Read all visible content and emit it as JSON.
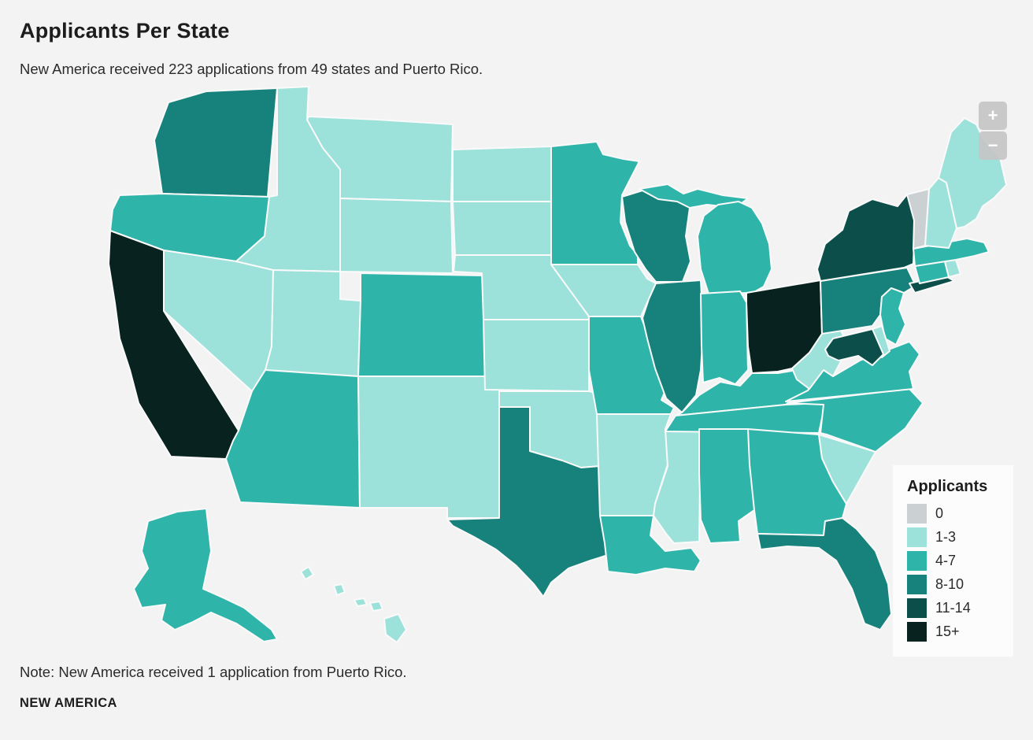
{
  "header": {
    "title": "Applicants Per State",
    "subtitle": "New America received 223 applications from 49 states and Puerto Rico."
  },
  "map": {
    "zoom_in_label": "+",
    "zoom_out_label": "−",
    "legend": {
      "title": "Applicants",
      "items": [
        {
          "label": "0",
          "color": "#cbd1d2"
        },
        {
          "label": "1-3",
          "color": "#9ce1da"
        },
        {
          "label": "4-7",
          "color": "#2fb4aa"
        },
        {
          "label": "8-10",
          "color": "#17817b"
        },
        {
          "label": "11-14",
          "color": "#0c4f4a"
        },
        {
          "label": "15+",
          "color": "#08231f"
        }
      ]
    },
    "states": [
      {
        "id": "AK",
        "name": "Alaska",
        "applicants": "4-7"
      },
      {
        "id": "HI",
        "name": "Hawaii",
        "applicants": "1-3"
      },
      {
        "id": "WA",
        "name": "Washington",
        "applicants": "8-10"
      },
      {
        "id": "OR",
        "name": "Oregon",
        "applicants": "4-7"
      },
      {
        "id": "CA",
        "name": "California",
        "applicants": "15+"
      },
      {
        "id": "NV",
        "name": "Nevada",
        "applicants": "1-3"
      },
      {
        "id": "ID",
        "name": "Idaho",
        "applicants": "1-3"
      },
      {
        "id": "MT",
        "name": "Montana",
        "applicants": "1-3"
      },
      {
        "id": "WY",
        "name": "Wyoming",
        "applicants": "1-3"
      },
      {
        "id": "UT",
        "name": "Utah",
        "applicants": "1-3"
      },
      {
        "id": "CO",
        "name": "Colorado",
        "applicants": "4-7"
      },
      {
        "id": "AZ",
        "name": "Arizona",
        "applicants": "4-7"
      },
      {
        "id": "NM",
        "name": "New Mexico",
        "applicants": "1-3"
      },
      {
        "id": "ND",
        "name": "North Dakota",
        "applicants": "1-3"
      },
      {
        "id": "SD",
        "name": "South Dakota",
        "applicants": "1-3"
      },
      {
        "id": "NE",
        "name": "Nebraska",
        "applicants": "1-3"
      },
      {
        "id": "KS",
        "name": "Kansas",
        "applicants": "1-3"
      },
      {
        "id": "OK",
        "name": "Oklahoma",
        "applicants": "1-3"
      },
      {
        "id": "TX",
        "name": "Texas",
        "applicants": "8-10"
      },
      {
        "id": "MN",
        "name": "Minnesota",
        "applicants": "4-7"
      },
      {
        "id": "IA",
        "name": "Iowa",
        "applicants": "1-3"
      },
      {
        "id": "MO",
        "name": "Missouri",
        "applicants": "4-7"
      },
      {
        "id": "AR",
        "name": "Arkansas",
        "applicants": "1-3"
      },
      {
        "id": "LA",
        "name": "Louisiana",
        "applicants": "4-7"
      },
      {
        "id": "WI",
        "name": "Wisconsin",
        "applicants": "8-10"
      },
      {
        "id": "IL",
        "name": "Illinois",
        "applicants": "8-10"
      },
      {
        "id": "MS",
        "name": "Mississippi",
        "applicants": "1-3"
      },
      {
        "id": "MI",
        "name": "Michigan",
        "applicants": "4-7"
      },
      {
        "id": "IN",
        "name": "Indiana",
        "applicants": "4-7"
      },
      {
        "id": "OH",
        "name": "Ohio",
        "applicants": "15+"
      },
      {
        "id": "KY",
        "name": "Kentucky",
        "applicants": "4-7"
      },
      {
        "id": "TN",
        "name": "Tennessee",
        "applicants": "4-7"
      },
      {
        "id": "AL",
        "name": "Alabama",
        "applicants": "4-7"
      },
      {
        "id": "GA",
        "name": "Georgia",
        "applicants": "4-7"
      },
      {
        "id": "FL",
        "name": "Florida",
        "applicants": "8-10"
      },
      {
        "id": "SC",
        "name": "South Carolina",
        "applicants": "1-3"
      },
      {
        "id": "NC",
        "name": "North Carolina",
        "applicants": "4-7"
      },
      {
        "id": "VA",
        "name": "Virginia",
        "applicants": "4-7"
      },
      {
        "id": "WV",
        "name": "West Virginia",
        "applicants": "1-3"
      },
      {
        "id": "PA",
        "name": "Pennsylvania",
        "applicants": "8-10"
      },
      {
        "id": "NY",
        "name": "New York",
        "applicants": "11-14"
      },
      {
        "id": "NJ",
        "name": "New Jersey",
        "applicants": "4-7"
      },
      {
        "id": "DE",
        "name": "Delaware",
        "applicants": "1-3"
      },
      {
        "id": "MD",
        "name": "Maryland",
        "applicants": "11-14"
      },
      {
        "id": "CT",
        "name": "Connecticut",
        "applicants": "4-7"
      },
      {
        "id": "RI",
        "name": "Rhode Island",
        "applicants": "1-3"
      },
      {
        "id": "MA",
        "name": "Massachusetts",
        "applicants": "4-7"
      },
      {
        "id": "VT",
        "name": "Vermont",
        "applicants": "0"
      },
      {
        "id": "NH",
        "name": "New Hampshire",
        "applicants": "1-3"
      },
      {
        "id": "ME",
        "name": "Maine",
        "applicants": "1-3"
      }
    ]
  },
  "note": {
    "text": "Note: New America received 1 application from Puerto Rico."
  },
  "footer": {
    "brand": "NEW AMERICA"
  },
  "colors": {
    "background": "#f4f3f3",
    "state_border": "#fafafa"
  }
}
